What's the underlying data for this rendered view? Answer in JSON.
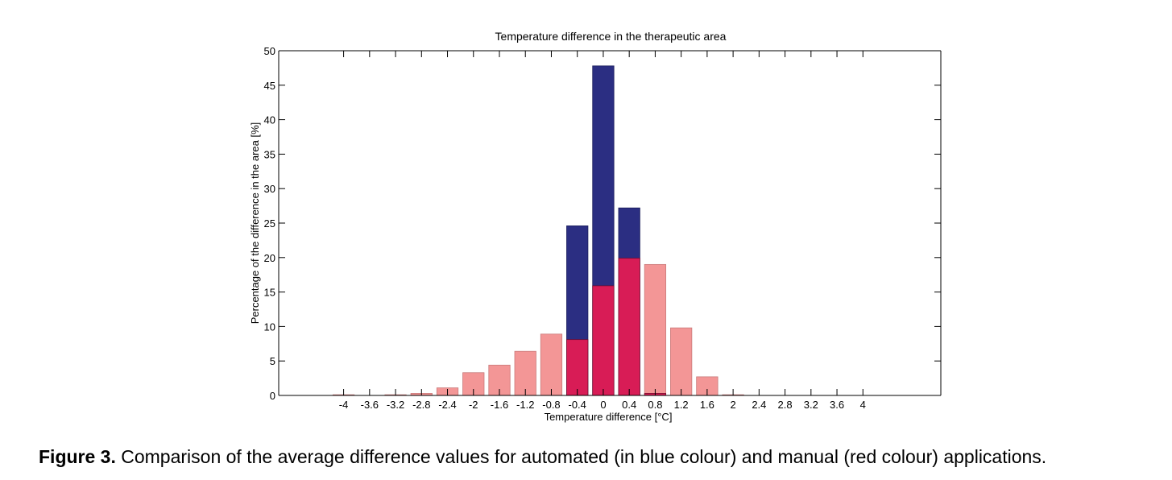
{
  "caption": {
    "lead": "Figure 3.",
    "text": "Comparison of the average difference values for automated (in blue colour) and manual (red colour) applications."
  },
  "colors": {
    "automated": "#2b2e82",
    "manual": "#f39696",
    "overlap": "#d81c56",
    "axis": "#000000"
  },
  "chart_data": {
    "type": "bar",
    "title": "Temperature difference in the therapeutic area",
    "xlabel": "Temperature difference [°C]",
    "ylabel": "Percentage of the difference in the area [%]",
    "ylim": [
      0,
      50
    ],
    "yticks": [
      0,
      5,
      10,
      15,
      20,
      25,
      30,
      35,
      40,
      45,
      50
    ],
    "xlim": [
      -5.0,
      5.2
    ],
    "categories": [
      "-4",
      "-3.6",
      "-3.2",
      "-2.8",
      "-2.4",
      "-2",
      "-1.6",
      "-1.2",
      "-0.8",
      "-0.4",
      "0",
      "0.4",
      "0.8",
      "1.2",
      "1.6",
      "2",
      "2.4",
      "2.8",
      "3.2",
      "3.6",
      "4"
    ],
    "x": [
      -4,
      -3.6,
      -3.2,
      -2.8,
      -2.4,
      -2,
      -1.6,
      -1.2,
      -0.8,
      -0.4,
      0,
      0.4,
      0.8,
      1.2,
      1.6,
      2,
      2.4,
      2.8,
      3.2,
      3.6,
      4
    ],
    "series": [
      {
        "color_key": "automated",
        "values": [
          0,
          0,
          0,
          0,
          0,
          0,
          0,
          0,
          0,
          24.6,
          47.8,
          27.2,
          0.3,
          0,
          0,
          0,
          0,
          0,
          0,
          0,
          0
        ]
      },
      {
        "color_key": "manual",
        "values": [
          0.1,
          0,
          0.1,
          0.3,
          1.1,
          3.3,
          4.4,
          6.4,
          8.9,
          8.1,
          15.9,
          19.9,
          19.0,
          9.8,
          2.7,
          0.1,
          0,
          0,
          0,
          0,
          0
        ]
      }
    ],
    "grid": false,
    "legend": "none"
  }
}
